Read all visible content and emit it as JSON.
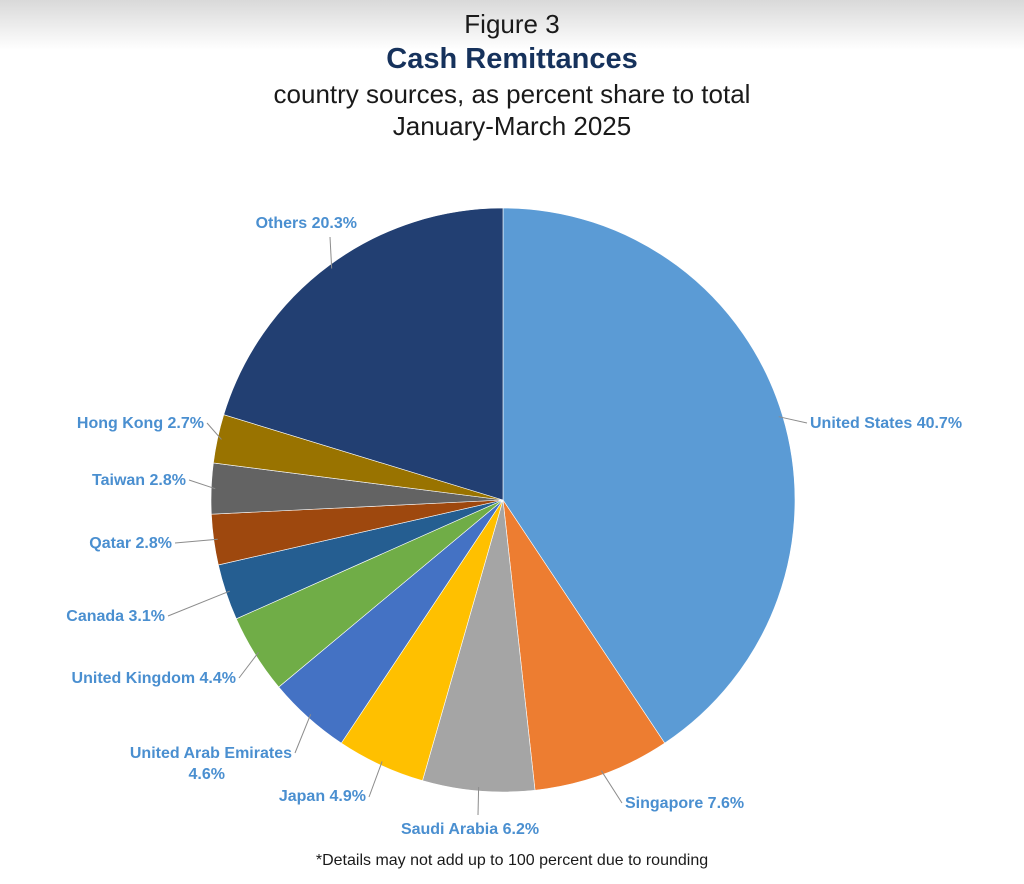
{
  "header": {
    "figure_label": "Figure 3",
    "title": "Cash Remittances",
    "subtitle": "country sources, as percent share to total",
    "period": "January-March 2025"
  },
  "footnote": "*Details may not add up to 100 percent due to rounding",
  "chart_data": {
    "type": "pie",
    "title": "Cash Remittances",
    "subtitle": "country sources, as percent share to total",
    "unit": "percent",
    "start": "12 o'clock",
    "direction": "clockwise",
    "label_color": "#4a8fd0",
    "slices": [
      {
        "name": "United States",
        "value": 40.7,
        "label": "United States 40.7%",
        "color": "#5b9bd5"
      },
      {
        "name": "Singapore",
        "value": 7.6,
        "label": "Singapore 7.6%",
        "color": "#ed7d31"
      },
      {
        "name": "Saudi Arabia",
        "value": 6.2,
        "label": "Saudi Arabia 6.2%",
        "color": "#a5a5a5"
      },
      {
        "name": "Japan",
        "value": 4.9,
        "label": "Japan 4.9%",
        "color": "#ffc000"
      },
      {
        "name": "United Arab Emirates",
        "value": 4.6,
        "label": "United Arab Emirates 4.6%",
        "color": "#4472c4"
      },
      {
        "name": "United Kingdom",
        "value": 4.4,
        "label": "United Kingdom 4.4%",
        "color": "#70ad47"
      },
      {
        "name": "Canada",
        "value": 3.1,
        "label": "Canada 3.1%",
        "color": "#255e91"
      },
      {
        "name": "Qatar",
        "value": 2.8,
        "label": "Qatar 2.8%",
        "color": "#9e480e"
      },
      {
        "name": "Taiwan",
        "value": 2.8,
        "label": "Taiwan 2.8%",
        "color": "#636363"
      },
      {
        "name": "Hong Kong",
        "value": 2.7,
        "label": "Hong Kong 2.7%",
        "color": "#997300"
      },
      {
        "name": "Others",
        "value": 20.3,
        "label": "Others 20.3%",
        "color": "#223f72"
      }
    ]
  }
}
